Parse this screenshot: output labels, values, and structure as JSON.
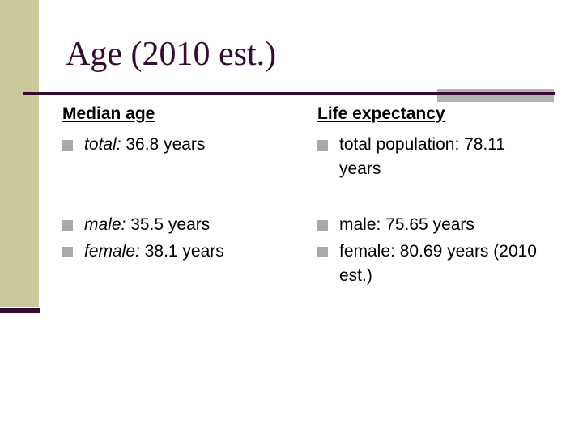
{
  "slide": {
    "title": "Age (2010 est.)",
    "columns": [
      {
        "header": "Median age",
        "items": [
          {
            "label": "total:",
            "value": " 36.8 years"
          },
          {
            "label": "male:",
            "value": " 35.5 years"
          },
          {
            "label": "female:",
            "value": " 38.1 years"
          }
        ]
      },
      {
        "header": "Life expectancy",
        "items": [
          {
            "text": "total population: 78.11 years"
          },
          {
            "text": "male: 75.65 years"
          },
          {
            "text": "female: 80.69 years (2010 est.)"
          }
        ]
      }
    ],
    "icons": {
      "bullet": "square-bullet-icon"
    },
    "colors": {
      "accent_plum": "#350a32",
      "title_plum": "#390b33",
      "sidebar_khaki": "#c9c99c",
      "gray_accent": "#b3b3b3",
      "bullet_gray": "#a9a9a9"
    }
  }
}
